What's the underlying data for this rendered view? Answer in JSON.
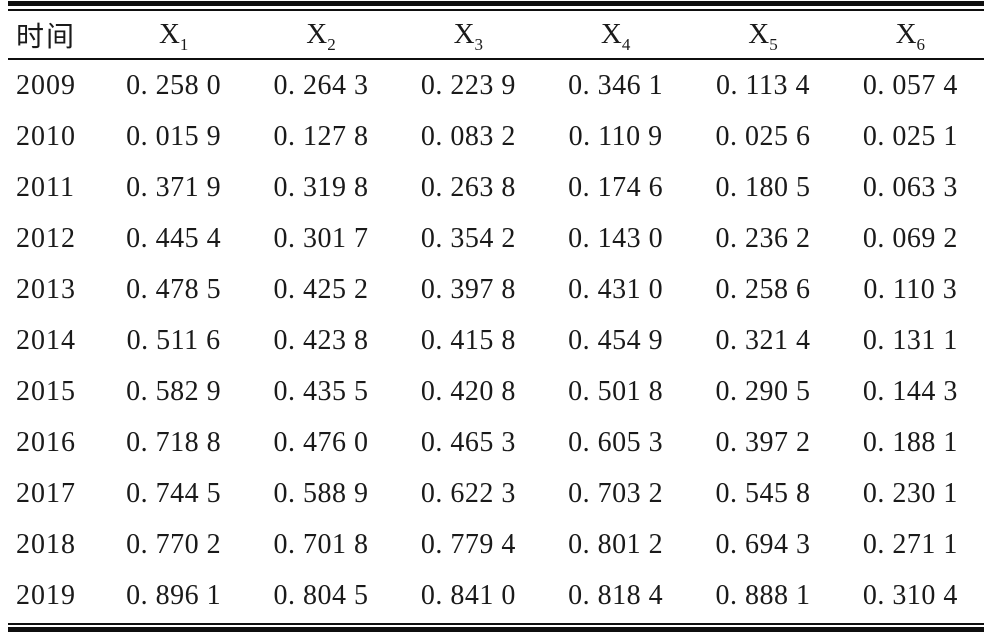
{
  "page": {
    "background": "#ffffff",
    "text_color": "#1a1a1a",
    "rule_color": "#0f0f0f"
  },
  "table": {
    "header": {
      "time_label": "时间",
      "variables": [
        {
          "base": "X",
          "sub": "1"
        },
        {
          "base": "X",
          "sub": "2"
        },
        {
          "base": "X",
          "sub": "3"
        },
        {
          "base": "X",
          "sub": "4"
        },
        {
          "base": "X",
          "sub": "5"
        },
        {
          "base": "X",
          "sub": "6"
        }
      ]
    },
    "rows": [
      {
        "year": "2009",
        "values": [
          "0. 258 0",
          "0. 264 3",
          "0. 223 9",
          "0. 346 1",
          "0. 113 4",
          "0. 057 4"
        ]
      },
      {
        "year": "2010",
        "values": [
          "0. 015 9",
          "0. 127 8",
          "0. 083 2",
          "0. 110 9",
          "0. 025 6",
          "0. 025 1"
        ]
      },
      {
        "year": "2011",
        "values": [
          "0. 371 9",
          "0. 319 8",
          "0. 263 8",
          "0. 174 6",
          "0. 180 5",
          "0. 063 3"
        ]
      },
      {
        "year": "2012",
        "values": [
          "0. 445 4",
          "0. 301 7",
          "0. 354 2",
          "0. 143 0",
          "0. 236 2",
          "0. 069 2"
        ]
      },
      {
        "year": "2013",
        "values": [
          "0. 478 5",
          "0. 425 2",
          "0. 397 8",
          "0. 431 0",
          "0. 258 6",
          "0. 110 3"
        ]
      },
      {
        "year": "2014",
        "values": [
          "0. 511 6",
          "0. 423 8",
          "0. 415 8",
          "0. 454 9",
          "0. 321 4",
          "0. 131 1"
        ]
      },
      {
        "year": "2015",
        "values": [
          "0. 582 9",
          "0. 435 5",
          "0. 420 8",
          "0. 501 8",
          "0. 290 5",
          "0. 144 3"
        ]
      },
      {
        "year": "2016",
        "values": [
          "0. 718 8",
          "0. 476 0",
          "0. 465 3",
          "0. 605 3",
          "0. 397 2",
          "0. 188 1"
        ]
      },
      {
        "year": "2017",
        "values": [
          "0. 744 5",
          "0. 588 9",
          "0. 622 3",
          "0. 703 2",
          "0. 545 8",
          "0. 230 1"
        ]
      },
      {
        "year": "2018",
        "values": [
          "0. 770 2",
          "0. 701 8",
          "0. 779 4",
          "0. 801 2",
          "0. 694 3",
          "0. 271 1"
        ]
      },
      {
        "year": "2019",
        "values": [
          "0. 896 1",
          "0. 804 5",
          "0. 841 0",
          "0. 818 4",
          "0. 888 1",
          "0. 310 4"
        ]
      }
    ]
  },
  "chart_data": {
    "type": "table",
    "title": "",
    "columns": [
      "时间",
      "X1",
      "X2",
      "X3",
      "X4",
      "X5",
      "X6"
    ],
    "years": [
      2009,
      2010,
      2011,
      2012,
      2013,
      2014,
      2015,
      2016,
      2017,
      2018,
      2019
    ],
    "series": [
      {
        "name": "X1",
        "values": [
          0.258,
          0.0159,
          0.3719,
          0.4454,
          0.4785,
          0.5116,
          0.5829,
          0.7188,
          0.7445,
          0.7702,
          0.8961
        ]
      },
      {
        "name": "X2",
        "values": [
          0.2643,
          0.1278,
          0.3198,
          0.3017,
          0.4252,
          0.4238,
          0.4355,
          0.476,
          0.5889,
          0.7018,
          0.8045
        ]
      },
      {
        "name": "X3",
        "values": [
          0.2239,
          0.0832,
          0.2638,
          0.3542,
          0.3978,
          0.4158,
          0.4208,
          0.4653,
          0.6223,
          0.7794,
          0.841
        ]
      },
      {
        "name": "X4",
        "values": [
          0.3461,
          0.1109,
          0.1746,
          0.143,
          0.431,
          0.4549,
          0.5018,
          0.6053,
          0.7032,
          0.8012,
          0.8184
        ]
      },
      {
        "name": "X5",
        "values": [
          0.1134,
          0.0256,
          0.1805,
          0.2362,
          0.2586,
          0.3214,
          0.2905,
          0.3972,
          0.5458,
          0.6943,
          0.8881
        ]
      },
      {
        "name": "X6",
        "values": [
          0.0574,
          0.0251,
          0.0633,
          0.0692,
          0.1103,
          0.1311,
          0.1443,
          0.1881,
          0.2301,
          0.2711,
          0.3104
        ]
      }
    ]
  }
}
